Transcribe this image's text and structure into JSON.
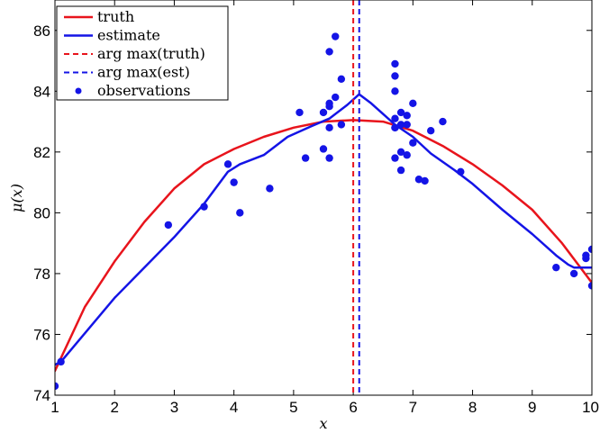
{
  "chart_data": {
    "type": "line",
    "xlabel": "x",
    "ylabel": "μ(x)",
    "xlim": [
      1,
      10
    ],
    "ylim": [
      74,
      87
    ],
    "xticks": [
      1,
      2,
      3,
      4,
      5,
      6,
      7,
      8,
      9,
      10
    ],
    "yticks": [
      74,
      76,
      78,
      80,
      82,
      84,
      86
    ],
    "grid": false,
    "legend_position": "top-left",
    "legend": [
      "truth",
      "estimate",
      "arg max(truth)",
      "arg max(est)",
      "observations"
    ],
    "colors": {
      "truth": "#e8141c",
      "estimate": "#1414e6",
      "observations": "#1414e6"
    },
    "series": [
      {
        "name": "truth",
        "style": "solid",
        "x": [
          1.0,
          1.5,
          2.0,
          2.5,
          3.0,
          3.5,
          4.0,
          4.5,
          5.0,
          5.5,
          6.0,
          6.5,
          7.0,
          7.5,
          8.0,
          8.5,
          9.0,
          9.5,
          10.0
        ],
        "y": [
          74.8,
          76.9,
          78.4,
          79.7,
          80.8,
          81.6,
          82.1,
          82.5,
          82.8,
          83.0,
          83.05,
          83.0,
          82.7,
          82.2,
          81.6,
          80.9,
          80.1,
          79.0,
          77.7
        ]
      },
      {
        "name": "estimate",
        "style": "solid",
        "x": [
          1.0,
          1.1,
          2.0,
          3.0,
          3.5,
          3.9,
          4.1,
          4.5,
          4.9,
          5.3,
          5.6,
          5.9,
          6.1,
          6.3,
          6.7,
          7.0,
          7.3,
          7.7,
          8.0,
          8.5,
          9.0,
          9.4,
          9.6,
          9.7,
          10.0
        ],
        "y": [
          75.0,
          75.1,
          77.2,
          79.2,
          80.3,
          81.35,
          81.6,
          81.9,
          82.5,
          82.85,
          83.1,
          83.55,
          83.9,
          83.6,
          82.9,
          82.5,
          81.95,
          81.4,
          80.95,
          80.1,
          79.3,
          78.6,
          78.3,
          78.2,
          78.2
        ]
      }
    ],
    "argmax": [
      {
        "name": "arg max(truth)",
        "x": 6.0,
        "color": "#e8141c",
        "style": "dashed"
      },
      {
        "name": "arg max(est)",
        "x": 6.1,
        "color": "#1414e6",
        "style": "dashed"
      }
    ],
    "observations": {
      "name": "observations",
      "x": [
        1.0,
        1.1,
        2.9,
        3.5,
        3.9,
        4.0,
        4.1,
        4.6,
        5.1,
        5.2,
        5.5,
        5.5,
        5.6,
        5.6,
        5.6,
        5.6,
        5.6,
        5.7,
        5.7,
        5.8,
        5.8,
        6.7,
        6.7,
        6.7,
        6.7,
        6.7,
        6.7,
        6.7,
        6.8,
        6.8,
        6.8,
        6.8,
        6.9,
        6.9,
        6.9,
        7.0,
        7.0,
        7.1,
        7.2,
        7.3,
        7.5,
        7.8,
        9.4,
        9.7,
        9.9,
        9.9,
        10.0,
        10.0
      ],
      "y": [
        74.3,
        75.1,
        79.6,
        80.2,
        81.6,
        81.0,
        80.0,
        80.8,
        83.3,
        81.8,
        83.3,
        82.1,
        82.8,
        83.5,
        83.6,
        85.3,
        81.8,
        85.8,
        83.8,
        82.9,
        84.4,
        84.9,
        84.5,
        84.0,
        83.1,
        82.8,
        82.8,
        81.8,
        83.3,
        82.0,
        81.4,
        82.9,
        83.2,
        82.9,
        81.9,
        83.6,
        82.3,
        81.1,
        81.05,
        82.7,
        83.0,
        81.35,
        78.2,
        78.0,
        78.6,
        78.5,
        78.8,
        77.6
      ]
    }
  }
}
